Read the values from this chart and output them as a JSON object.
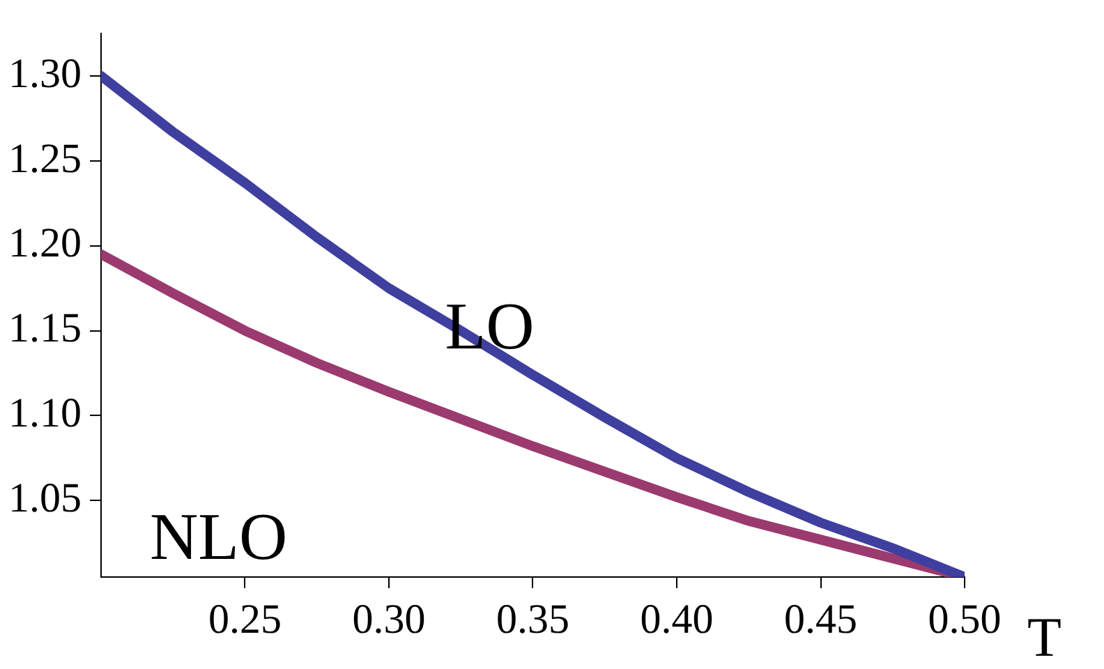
{
  "chart_data": {
    "type": "line",
    "xlabel": "T",
    "xlim": [
      0.2,
      0.5
    ],
    "ylim": [
      1.005,
      1.325
    ],
    "xticks": [
      0.25,
      {
        "value": 0.3,
        "label": "0.30"
      },
      0.35,
      {
        "value": 0.4,
        "label": "0.40"
      },
      0.45,
      {
        "value": 0.5,
        "label": "0.50"
      }
    ],
    "yticks": [
      1.05,
      {
        "value": 1.1,
        "label": "1.10"
      },
      1.15,
      {
        "value": 1.2,
        "label": "1.20"
      },
      1.25,
      {
        "value": 1.3,
        "label": "1.30"
      }
    ],
    "grid": false,
    "legend": false,
    "marker": "none",
    "line_style": "solid",
    "series": [
      {
        "name": "LO",
        "color": "#3f3f9f",
        "x": [
          0.2,
          0.225,
          0.25,
          0.275,
          0.3,
          0.325,
          0.35,
          0.375,
          0.4,
          0.425,
          0.45,
          0.475,
          0.5
        ],
        "values": [
          1.3,
          1.267,
          1.237,
          1.205,
          1.175,
          1.15,
          1.124,
          1.099,
          1.075,
          1.055,
          1.037,
          1.022,
          1.005
        ]
      },
      {
        "name": "NLO",
        "color": "#9b3a6e",
        "x": [
          0.2,
          0.225,
          0.25,
          0.275,
          0.3,
          0.325,
          0.35,
          0.375,
          0.4,
          0.425,
          0.45,
          0.475,
          0.5
        ],
        "values": [
          1.195,
          1.172,
          1.15,
          1.131,
          1.114,
          1.098,
          1.082,
          1.067,
          1.052,
          1.038,
          1.027,
          1.016,
          1.005
        ]
      }
    ]
  }
}
